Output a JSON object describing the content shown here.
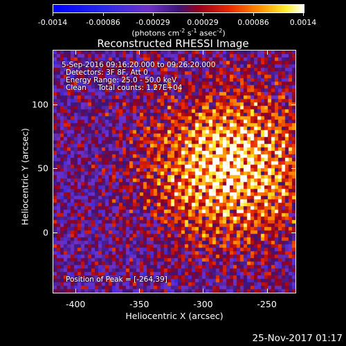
{
  "colorbar": {
    "ticks": [
      "-0.0014",
      "-0.00086",
      "-0.00029",
      "0.00029",
      "0.00086",
      "0.0014"
    ],
    "units_text": "(photons cm",
    "units_exp1": "-2",
    "units_mid": " s",
    "units_exp2": "-1",
    "units_mid2": " asec",
    "units_exp3": "-2",
    "units_end": ")"
  },
  "plot": {
    "title": "Reconstructed RHESSI Image",
    "annotations": [
      "5-Sep-2016 09:16:20.000 to 09:26:20.000",
      "Detectors: 3F 8F, Att 0",
      "Energy Range: 25.0 - 50.0 keV",
      "Clean     Total counts: 1.27E+04"
    ],
    "peak_text": "Position of Peak = [-264,39]",
    "x_ticks": [
      "-400",
      "-350",
      "-300",
      "-250"
    ],
    "y_ticks": [
      "100",
      "50",
      "0"
    ],
    "x_label": "Heliocentric X (arcsec)",
    "y_label": "Heliocentric Y (arcsec)"
  },
  "footer": {
    "date": "25-Nov-2017 01:17"
  },
  "chart_data": {
    "type": "heatmap",
    "title": "Reconstructed RHESSI Image",
    "xlabel": "Heliocentric X (arcsec)",
    "ylabel": "Heliocentric Y (arcsec)",
    "xlim": [
      -418,
      -227
    ],
    "ylim": [
      -48,
      143
    ],
    "colorbar_range": [
      -0.0014,
      0.0014
    ],
    "peak": [
      -264,
      39
    ],
    "colors": {
      "neg_deep": "#0000ff",
      "neg_mid": "#7a33cc",
      "zero": "#3a1080",
      "pos_low": "#b00010",
      "pos_mid": "#ff6a00",
      "pos_high": "#ffff40",
      "max": "#ffffff"
    }
  }
}
